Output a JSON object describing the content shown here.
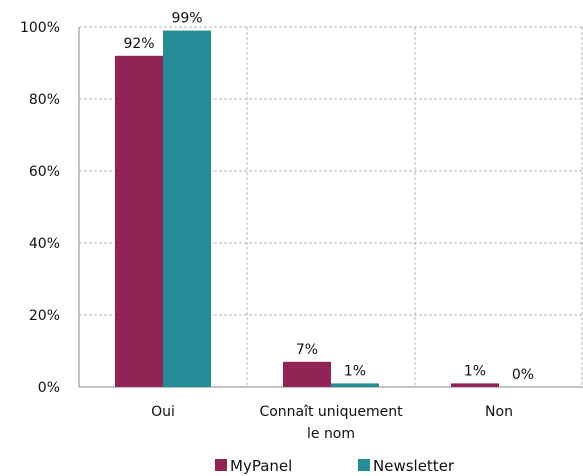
{
  "chart_data": {
    "type": "bar",
    "categories": [
      [
        "Oui"
      ],
      [
        "Connaît uniquement",
        "le nom"
      ],
      [
        "Non"
      ]
    ],
    "series": [
      {
        "name": "MyPanel",
        "values": [
          92,
          7,
          1
        ],
        "labels": [
          "92%",
          "7%",
          "1%"
        ],
        "color": "#922455"
      },
      {
        "name": "Newsletter",
        "values": [
          99,
          1,
          0
        ],
        "labels": [
          "99%",
          "1%",
          "0%"
        ],
        "color": "#248C96"
      }
    ],
    "y_ticks": [
      0,
      20,
      40,
      60,
      80,
      100
    ],
    "y_tick_labels": [
      "0%",
      "20%",
      "40%",
      "60%",
      "80%",
      "100%"
    ],
    "ylim": [
      0,
      100
    ],
    "grid": true,
    "legend_position": "bottom",
    "title": "",
    "xlabel": "",
    "ylabel": ""
  }
}
